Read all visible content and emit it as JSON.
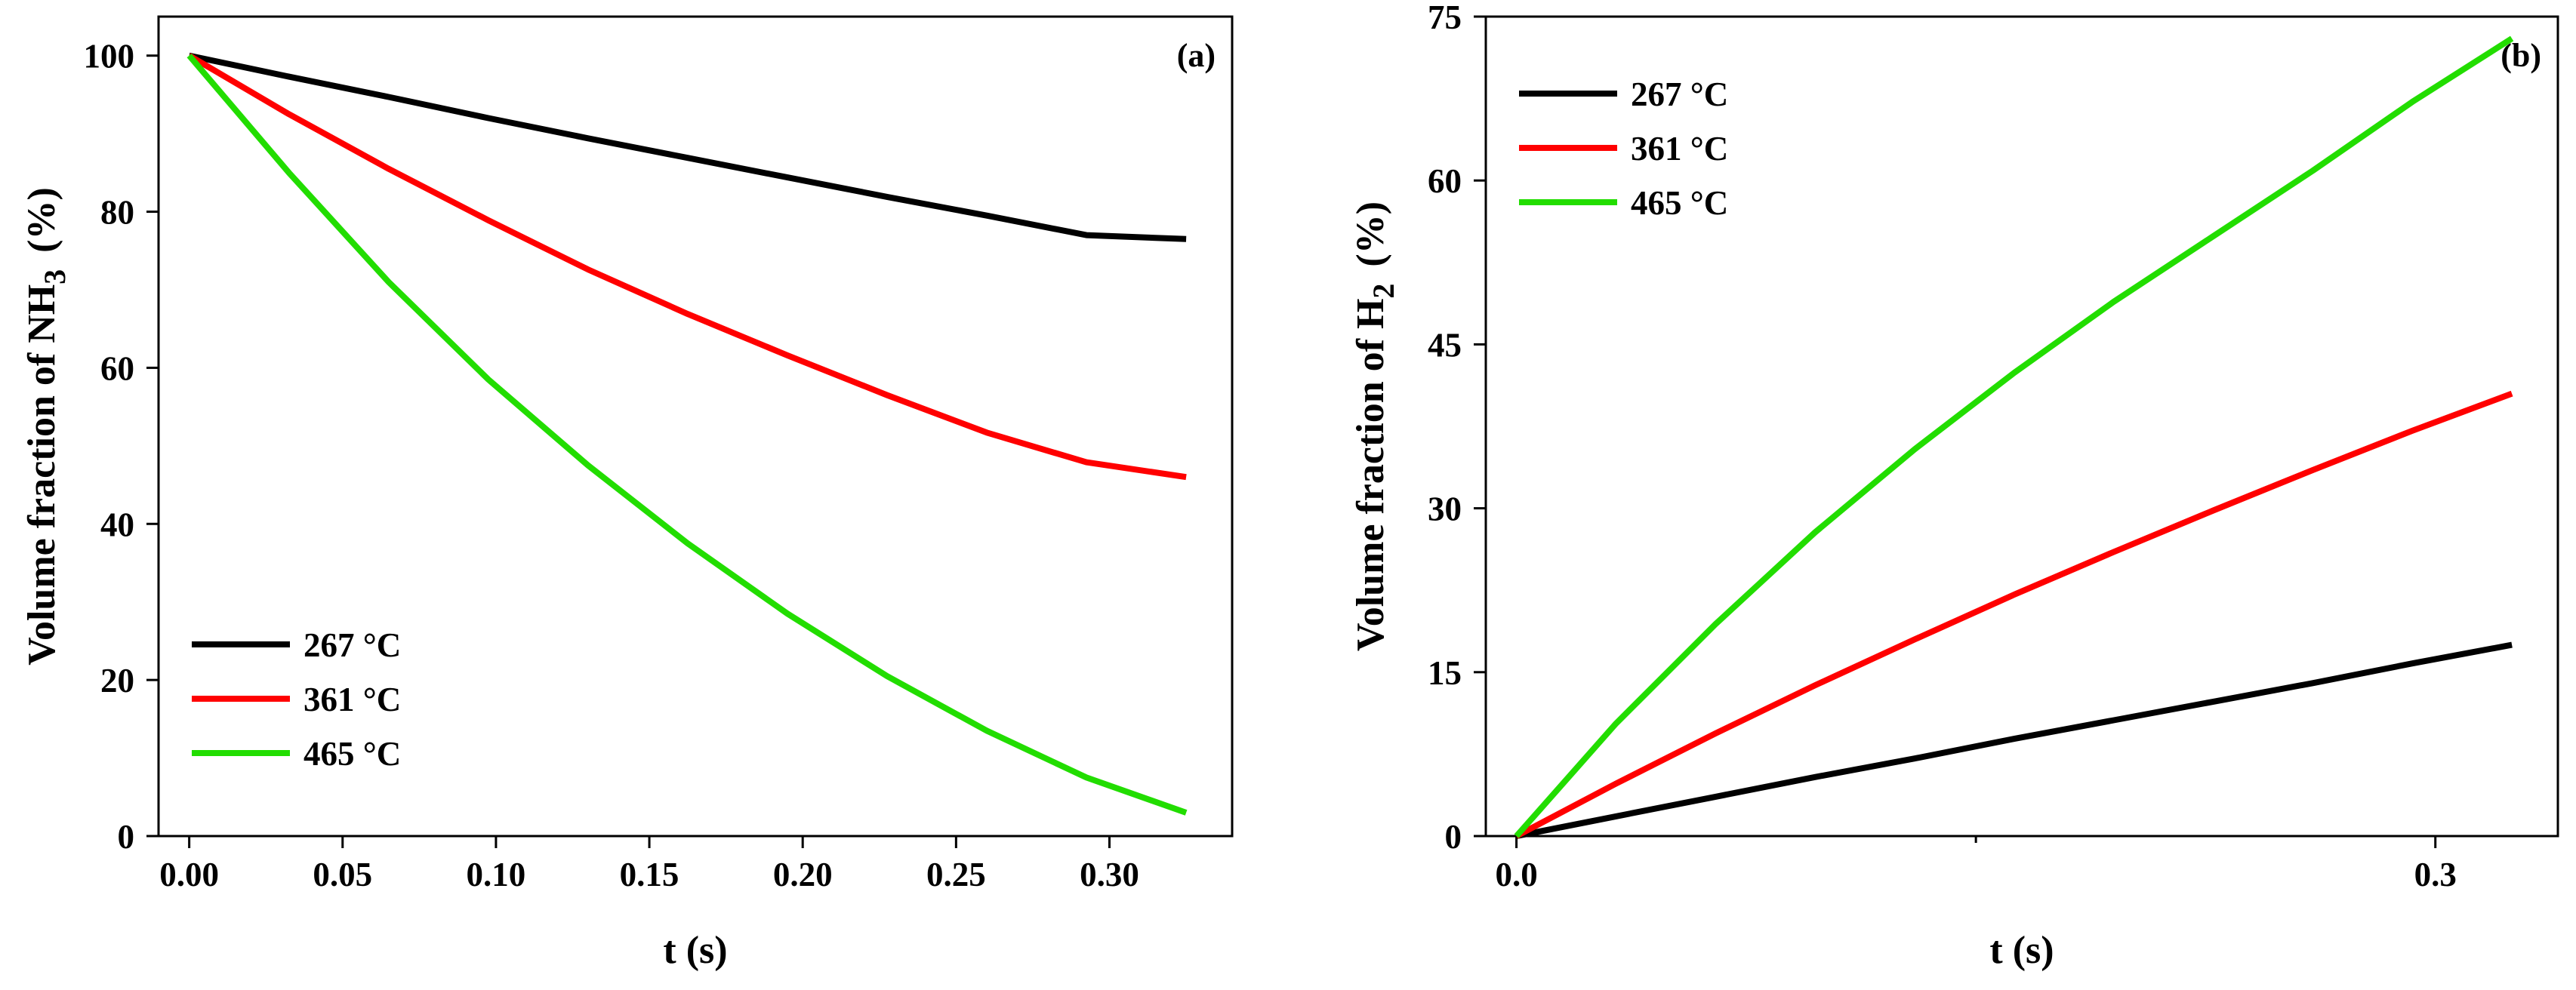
{
  "chart_data": [
    {
      "type": "line",
      "panel_label": "(a)",
      "xlabel": "t (s)",
      "ylabel": {
        "prefix": "Volume fraction of NH",
        "subscript": "3",
        "suffix": "(%)"
      },
      "xlim": [
        -0.01,
        0.34
      ],
      "ylim": [
        0,
        105
      ],
      "xticks": [
        0.0,
        0.05,
        0.1,
        0.15,
        0.2,
        0.25,
        0.3
      ],
      "xtick_labels": [
        "0.00",
        "0.05",
        "0.10",
        "0.15",
        "0.20",
        "0.25",
        "0.30"
      ],
      "yticks": [
        0,
        20,
        40,
        60,
        80,
        100
      ],
      "ytick_labels": [
        "0",
        "20",
        "40",
        "60",
        "80",
        "100"
      ],
      "legend_position": "bottom-left",
      "x": [
        0.0,
        0.0325,
        0.065,
        0.0975,
        0.13,
        0.1625,
        0.195,
        0.2275,
        0.26,
        0.2925,
        0.325
      ],
      "series": [
        {
          "name": "267 °C",
          "color": "#000000",
          "values": [
            100,
            97.3,
            94.7,
            92.0,
            89.4,
            86.9,
            84.4,
            81.9,
            79.5,
            77.0,
            76.5
          ]
        },
        {
          "name": "361 °C",
          "color": "#ff0000",
          "values": [
            100,
            92.5,
            85.5,
            78.9,
            72.6,
            66.9,
            61.6,
            56.5,
            51.7,
            47.9,
            46.0
          ]
        },
        {
          "name": "465 °C",
          "color": "#22dd00",
          "values": [
            100,
            85.0,
            71.0,
            58.5,
            47.5,
            37.5,
            28.5,
            20.5,
            13.5,
            7.5,
            3.0
          ]
        }
      ]
    },
    {
      "type": "line",
      "panel_label": "(b)",
      "xlabel": "t (s)",
      "ylabel": {
        "prefix": "Volume fraction of H",
        "subscript": "2",
        "suffix": "(%)"
      },
      "xlim": [
        -0.01,
        0.34
      ],
      "ylim": [
        0,
        75
      ],
      "xticks": [
        0.0,
        0.3
      ],
      "xtick_labels": [
        "0.0",
        "0.3"
      ],
      "minor_xticks": [
        0.15
      ],
      "yticks": [
        0,
        15,
        30,
        45,
        60,
        75
      ],
      "ytick_labels": [
        "0",
        "15",
        "30",
        "45",
        "60",
        "75"
      ],
      "legend_position": "top-left",
      "x": [
        0.0,
        0.0325,
        0.065,
        0.0975,
        0.13,
        0.1625,
        0.195,
        0.2275,
        0.26,
        0.2925,
        0.325
      ],
      "series": [
        {
          "name": "267 °C",
          "color": "#000000",
          "values": [
            0,
            1.8,
            3.6,
            5.4,
            7.1,
            8.9,
            10.6,
            12.3,
            14.0,
            15.8,
            17.5
          ]
        },
        {
          "name": "361 °C",
          "color": "#ff0000",
          "values": [
            0,
            4.8,
            9.4,
            13.8,
            18.0,
            22.1,
            26.0,
            29.8,
            33.5,
            37.1,
            40.5
          ]
        },
        {
          "name": "465 °C",
          "color": "#22dd00",
          "values": [
            0,
            10.3,
            19.4,
            27.8,
            35.4,
            42.4,
            48.9,
            54.9,
            60.9,
            67.2,
            73.0
          ]
        }
      ]
    }
  ]
}
